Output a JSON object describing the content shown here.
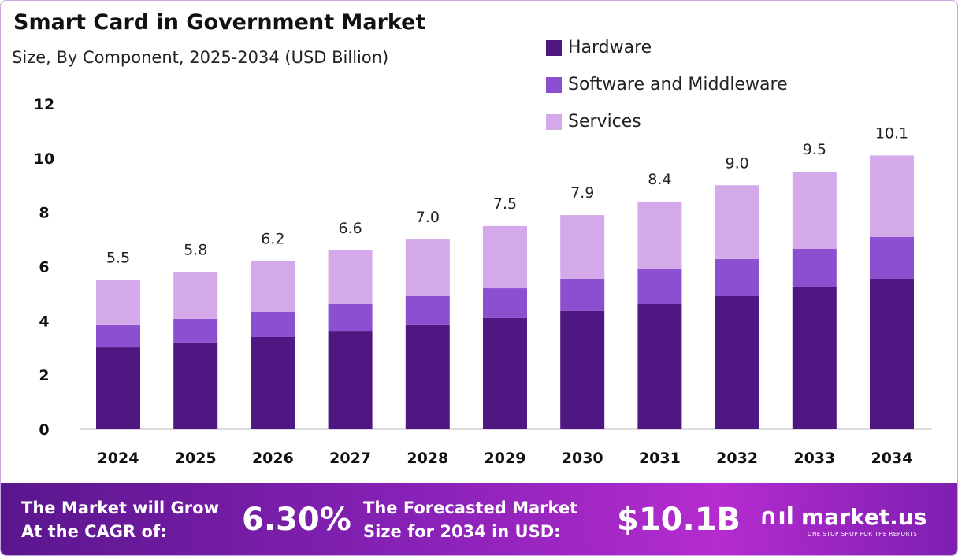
{
  "chart_data": {
    "type": "bar",
    "stacked": true,
    "title": "Smart Card in Government Market",
    "subtitle": "Size, By Component, 2025-2034 (USD Billion)",
    "categories": [
      "2024",
      "2025",
      "2026",
      "2027",
      "2028",
      "2029",
      "2030",
      "2031",
      "2032",
      "2033",
      "2034"
    ],
    "series": [
      {
        "name": "Hardware",
        "color": "#4f1782",
        "values": [
          3.02,
          3.2,
          3.4,
          3.63,
          3.84,
          4.1,
          4.36,
          4.62,
          4.91,
          5.23,
          5.55
        ]
      },
      {
        "name": "Software and Middleware",
        "color": "#8c4fcf",
        "values": [
          0.82,
          0.87,
          0.93,
          0.99,
          1.07,
          1.1,
          1.19,
          1.28,
          1.37,
          1.43,
          1.54
        ]
      },
      {
        "name": "Services",
        "color": "#d4a9ea",
        "values": [
          1.66,
          1.73,
          1.87,
          1.98,
          2.09,
          2.3,
          2.35,
          2.5,
          2.72,
          2.84,
          3.01
        ]
      }
    ],
    "totals": [
      "5.5",
      "5.8",
      "6.2",
      "6.6",
      "7.0",
      "7.5",
      "7.9",
      "8.4",
      "9.0",
      "9.5",
      "10.1"
    ],
    "ylim": [
      0,
      12
    ],
    "yticks": [
      "0",
      "2",
      "4",
      "6",
      "8",
      "10",
      "12"
    ],
    "grid": false,
    "legend_position": "top-right"
  },
  "banner": {
    "cagr_label_1": "The Market will Grow",
    "cagr_label_2": "At the CAGR of:",
    "cagr_value": "6.30%",
    "forecast_label_1": "The Forecasted Market",
    "forecast_label_2": "Size for 2034 in USD:",
    "forecast_value": "$10.1B",
    "brand": "market.us",
    "brand_tagline": "ONE STOP SHOP FOR THE REPORTS"
  }
}
